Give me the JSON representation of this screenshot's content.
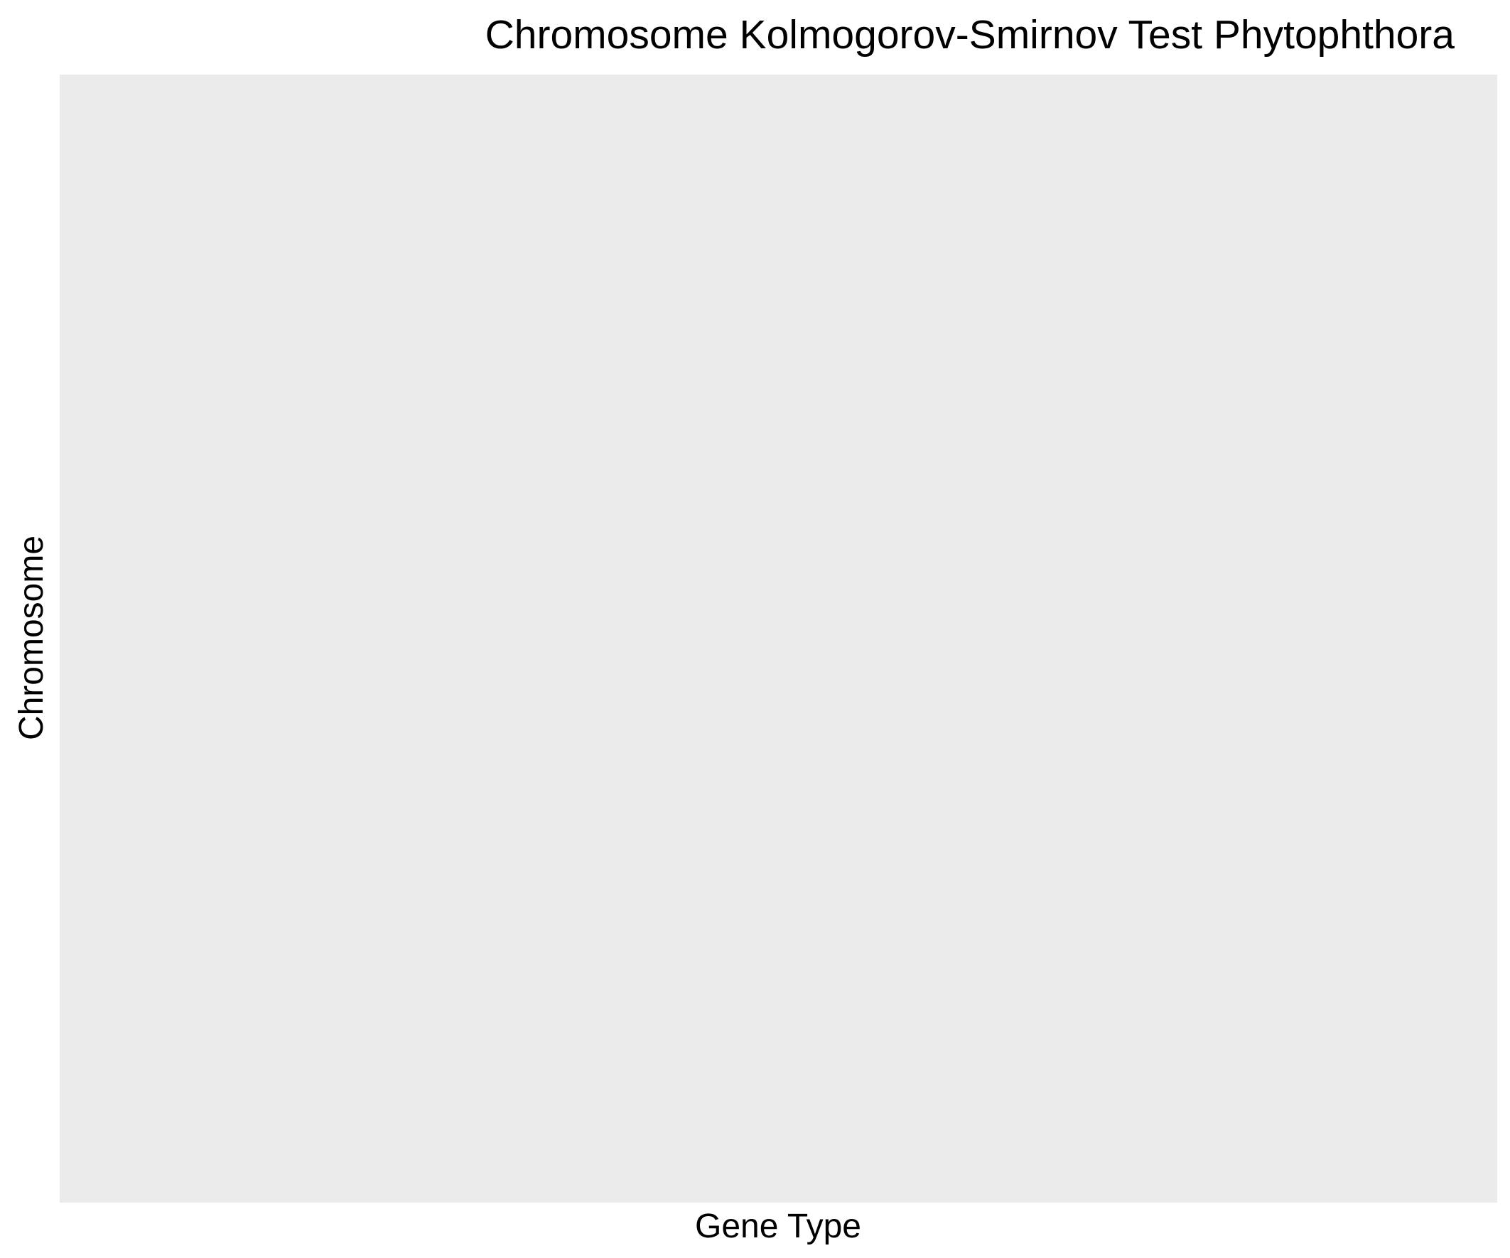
{
  "chart_data": {
    "type": "heatmap",
    "title": "Chromosome Kolmogorov-Smirnov Test Phytophthora",
    "xlabel": "Gene Type",
    "ylabel": "Chromosome",
    "categories": [],
    "series": [],
    "grid": false,
    "legend": "none",
    "colors": {
      "panel_background": "#EBEBEB",
      "page_background": "#FFFFFF",
      "text": "#000000"
    }
  }
}
